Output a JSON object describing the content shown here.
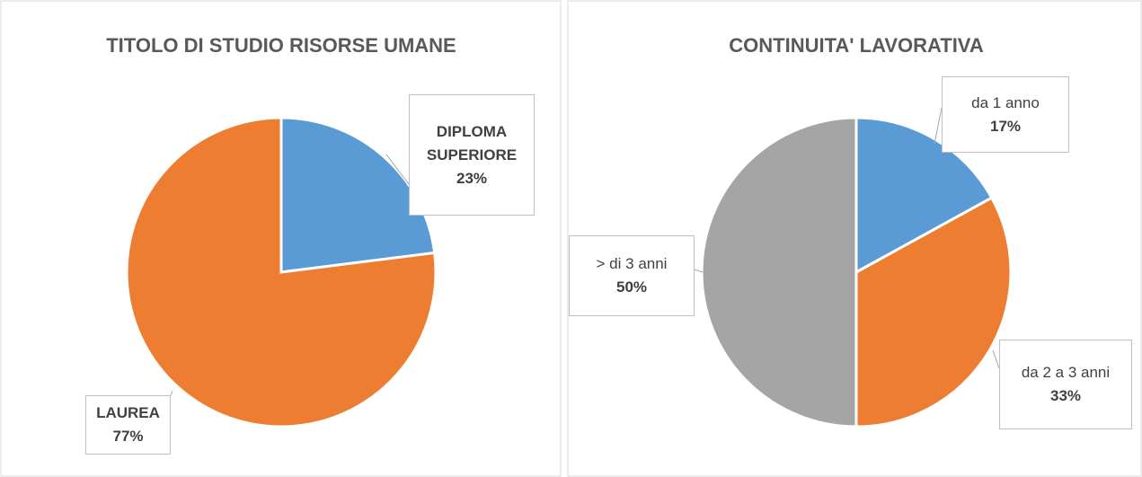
{
  "chart_data": [
    {
      "type": "pie",
      "title": "TITOLO DI STUDIO RISORSE UMANE",
      "categories": [
        "DIPLOMA SUPERIORE",
        "LAUREA"
      ],
      "values": [
        23,
        77
      ],
      "value_labels": [
        "23%",
        "77%"
      ],
      "colors": [
        "#5b9bd5",
        "#ed7d31"
      ]
    },
    {
      "type": "pie",
      "title": "CONTINUITA' LAVORATIVA",
      "categories": [
        "da 1 anno",
        "da 2 a 3 anni",
        "> di 3 anni"
      ],
      "values": [
        17,
        33,
        50
      ],
      "value_labels": [
        "17%",
        "33%",
        "50%"
      ],
      "colors": [
        "#5b9bd5",
        "#ed7d31",
        "#a5a5a5"
      ]
    }
  ]
}
